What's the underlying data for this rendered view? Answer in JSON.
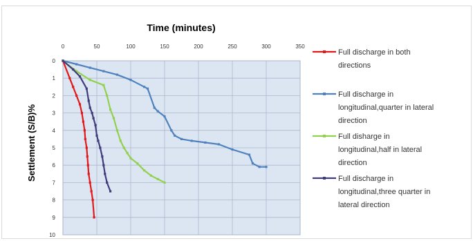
{
  "chart_data": {
    "type": "line",
    "title": "Time (minutes)",
    "xlabel": "",
    "ylabel": "Settlement (S/B)%",
    "xlim": [
      0,
      350
    ],
    "ylim": [
      0,
      10
    ],
    "x_ticks": [
      "0",
      "50",
      "100",
      "150",
      "200",
      "250",
      "300",
      "350"
    ],
    "y_ticks": [
      "0",
      "1",
      "2",
      "3",
      "4",
      "5",
      "6",
      "7",
      "8",
      "9",
      "10"
    ],
    "x_axis_position": "top",
    "y_axis_inverted": true,
    "grid": true,
    "legend_position": "right",
    "plot_background": "#dce6f2",
    "series": [
      {
        "name": "Full discharge in both directions",
        "legend_lines": [
          "Full discharge in both",
          "directions"
        ],
        "color": "#e0191b",
        "x": [
          0,
          10,
          15,
          20,
          25,
          28,
          30,
          32,
          33,
          35,
          36,
          37,
          38,
          40,
          42,
          44,
          46
        ],
        "y": [
          0,
          1.0,
          1.5,
          2.0,
          2.5,
          3.0,
          3.5,
          4.0,
          4.5,
          5.0,
          5.5,
          6.0,
          6.5,
          7.0,
          7.5,
          8.0,
          9.0
        ]
      },
      {
        "name": "Full discharge in longitudinal,quarter in lateral direction",
        "legend_lines": [
          "Full discharge in",
          "longitudinal,quarter in lateral",
          "direction"
        ],
        "color": "#4f81bd",
        "x": [
          0,
          20,
          40,
          60,
          80,
          100,
          120,
          125,
          135,
          140,
          150,
          160,
          165,
          175,
          190,
          210,
          230,
          250,
          275,
          280,
          290,
          300
        ],
        "y": [
          0,
          0.2,
          0.4,
          0.6,
          0.8,
          1.1,
          1.5,
          1.6,
          2.7,
          2.9,
          3.2,
          4.0,
          4.3,
          4.5,
          4.6,
          4.7,
          4.8,
          5.1,
          5.4,
          5.9,
          6.1,
          6.1
        ]
      },
      {
        "name": "Full disharge in longitudinal,half in lateral direction",
        "legend_lines": [
          "Full disharge in",
          "longitudinal,half in lateral",
          "direction"
        ],
        "color": "#92d050",
        "x": [
          0,
          20,
          40,
          60,
          65,
          70,
          75,
          80,
          85,
          90,
          95,
          100,
          110,
          120,
          130,
          140,
          150
        ],
        "y": [
          0,
          0.6,
          1.1,
          1.4,
          2.0,
          2.8,
          3.3,
          4.0,
          4.6,
          5.0,
          5.3,
          5.6,
          5.9,
          6.3,
          6.6,
          6.8,
          7.0
        ]
      },
      {
        "name": "Full discharge in longitudinal,three quarter in lateral direction",
        "legend_lines": [
          "Full discharge in",
          "longitudinal,three quarter in",
          "lateral direction"
        ],
        "color": "#403b7a",
        "x": [
          0,
          15,
          25,
          35,
          38,
          40,
          43,
          45,
          48,
          50,
          52,
          55,
          58,
          60,
          62,
          65,
          70
        ],
        "y": [
          0,
          0.5,
          0.9,
          1.6,
          2.3,
          2.7,
          3.0,
          3.3,
          3.7,
          4.3,
          4.6,
          5.0,
          5.5,
          6.0,
          6.5,
          7.0,
          7.5
        ]
      }
    ]
  }
}
